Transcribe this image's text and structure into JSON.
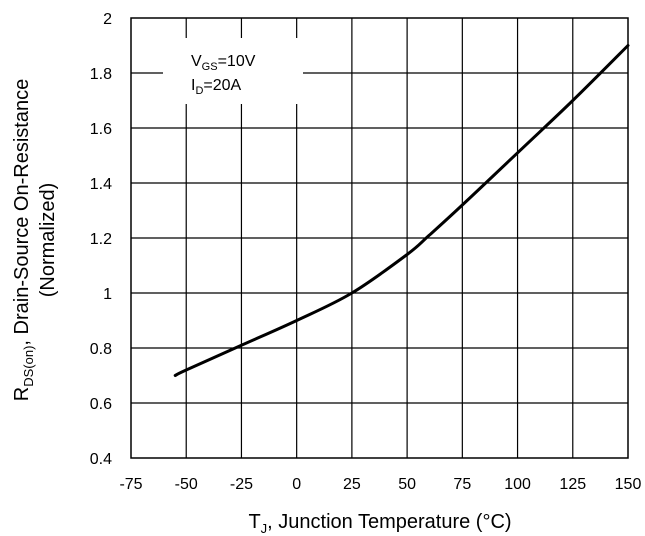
{
  "chart_data": {
    "type": "line",
    "xlabel": "T",
    "xlabel_sub": "J",
    "xlabel_rest": ", Junction Temperature (°C)",
    "ylabel_line1_main": "R",
    "ylabel_line1_sub": "DS(on)",
    "ylabel_line1_rest": ", Drain-Source On-Resistance",
    "ylabel_line2": "(Normalized)",
    "xlim": [
      -75,
      150
    ],
    "ylim": [
      0.4,
      2.0
    ],
    "x_ticks": [
      -75,
      -50,
      -25,
      0,
      25,
      50,
      75,
      100,
      125,
      150
    ],
    "y_ticks": [
      0.4,
      0.6,
      0.8,
      1.0,
      1.2,
      1.4,
      1.6,
      1.8,
      2.0
    ],
    "x_tick_labels": [
      "-75",
      "-50",
      "-25",
      "0",
      "25",
      "50",
      "75",
      "100",
      "125",
      "150"
    ],
    "y_tick_labels": [
      "0.4",
      "0.6",
      "0.8",
      "1",
      "1.2",
      "1.4",
      "1.6",
      "1.8",
      "2"
    ],
    "grid": true,
    "series": [
      {
        "x": [
          -55,
          -50,
          -25,
          0,
          25,
          50,
          60,
          75,
          100,
          125,
          150
        ],
        "y": [
          0.7,
          0.72,
          0.81,
          0.9,
          1.0,
          1.14,
          1.21,
          1.32,
          1.51,
          1.7,
          1.9
        ]
      }
    ],
    "annotations": {
      "vgs_main": "V",
      "vgs_sub": "GS",
      "vgs_rest": "=10V",
      "id_main": "I",
      "id_sub": "D",
      "id_rest": "=20A"
    }
  }
}
